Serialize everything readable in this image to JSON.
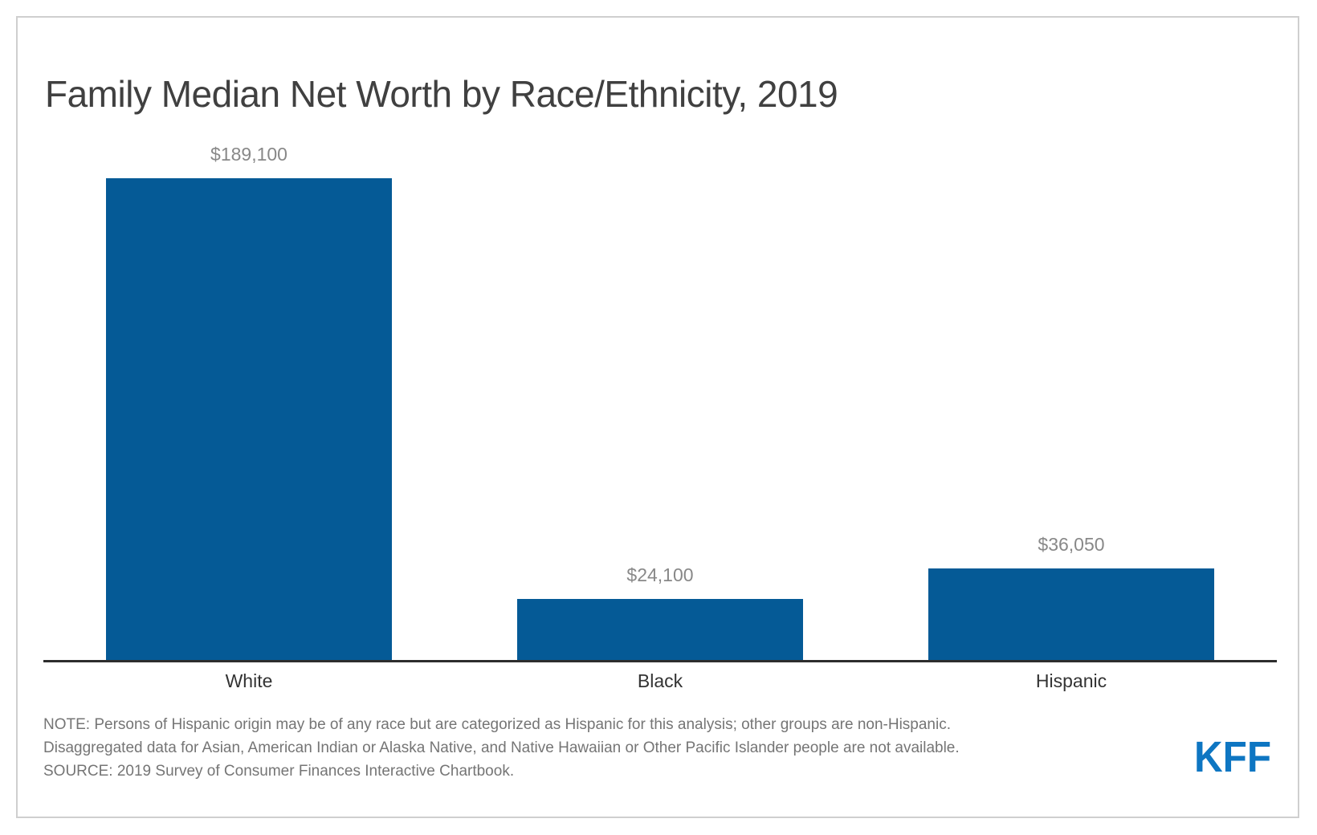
{
  "title": "Family Median Net Worth by Race/Ethnicity, 2019",
  "chart_data": {
    "type": "bar",
    "categories": [
      "White",
      "Black",
      "Hispanic"
    ],
    "values": [
      189100,
      24100,
      36050
    ],
    "value_labels": [
      "$189,100",
      "$24,100",
      "$36,050"
    ],
    "title": "Family Median Net Worth by Race/Ethnicity, 2019",
    "xlabel": "",
    "ylabel": "",
    "ylim": [
      0,
      189100
    ],
    "grid": false,
    "legend": false,
    "bar_color": "#055a96"
  },
  "notes": {
    "line1": "NOTE: Persons of Hispanic origin may be of any race but are categorized as Hispanic for this analysis; other groups are non-Hispanic.",
    "line2": "Disaggregated data for Asian, American Indian or Alaska Native, and Native Hawaiian or Other Pacific Islander people are not available.",
    "line3": "SOURCE: 2019 Survey of Consumer Finances Interactive Chartbook."
  },
  "logo": {
    "text": "KFF",
    "color": "#0e76c2"
  },
  "colors": {
    "bar": "#055a96",
    "value_label": "#888888",
    "category_label": "#333333",
    "title_text": "#404040",
    "note_text": "#757575",
    "axis_line": "#2d2d2d",
    "frame_border": "#cfcfcf"
  }
}
